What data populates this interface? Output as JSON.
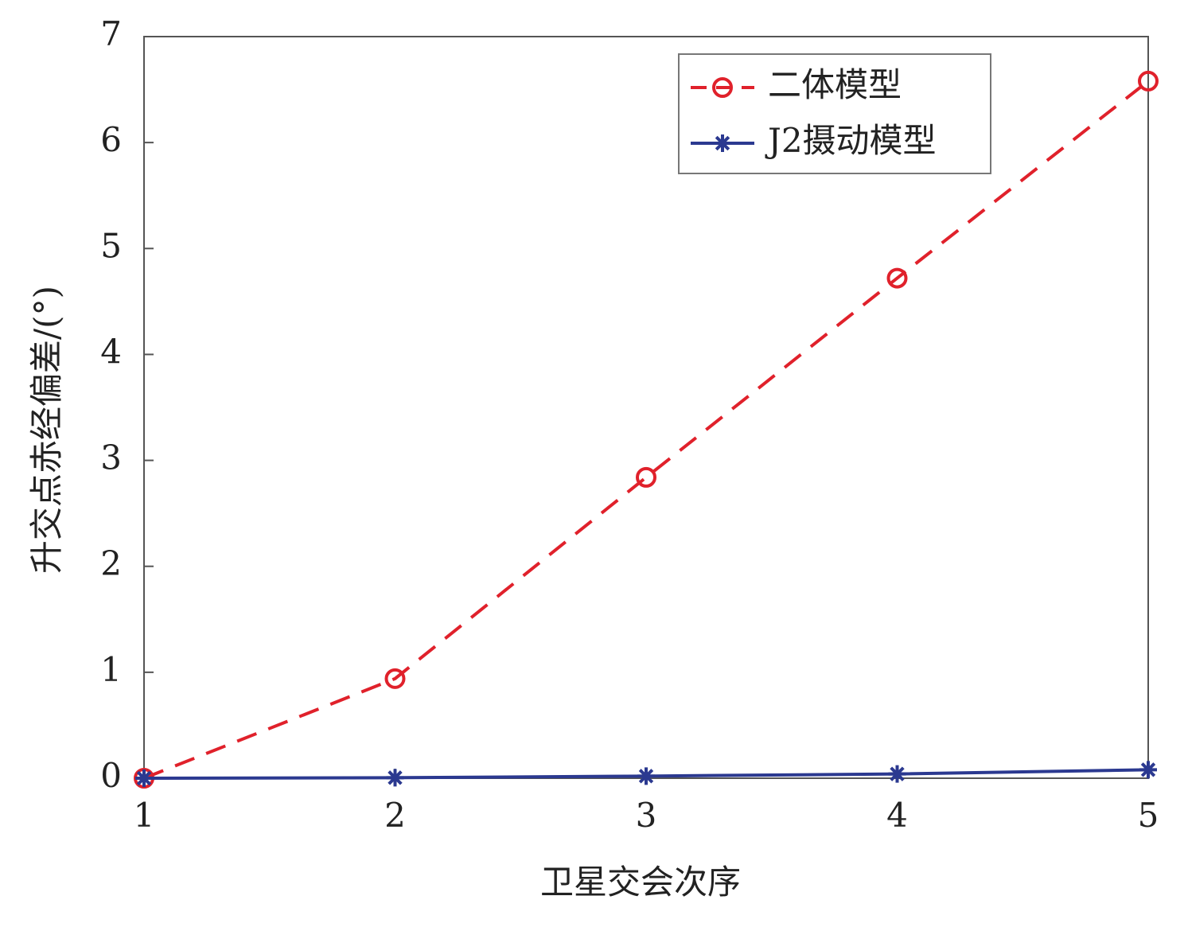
{
  "chart_data": {
    "type": "line",
    "x_label": "卫星交会次序",
    "y_label": "升交点赤经偏差/(°)",
    "x": [
      1,
      2,
      3,
      4,
      5
    ],
    "xlim": [
      1,
      5
    ],
    "xticks": [
      1,
      2,
      3,
      4,
      5
    ],
    "ylim": [
      0,
      7
    ],
    "yticks": [
      0,
      1,
      2,
      3,
      4,
      5,
      6,
      7
    ],
    "grid": false,
    "legend": "upper right",
    "series": [
      {
        "name": "二体模型",
        "color": "#e0212b",
        "marker": "circle",
        "dash": true,
        "values": [
          0,
          0.94,
          2.84,
          4.72,
          6.58
        ]
      },
      {
        "name": "J2摄动模型",
        "color": "#2b3990",
        "marker": "star",
        "dash": false,
        "values": [
          0,
          0.005,
          0.02,
          0.04,
          0.08
        ]
      }
    ]
  }
}
